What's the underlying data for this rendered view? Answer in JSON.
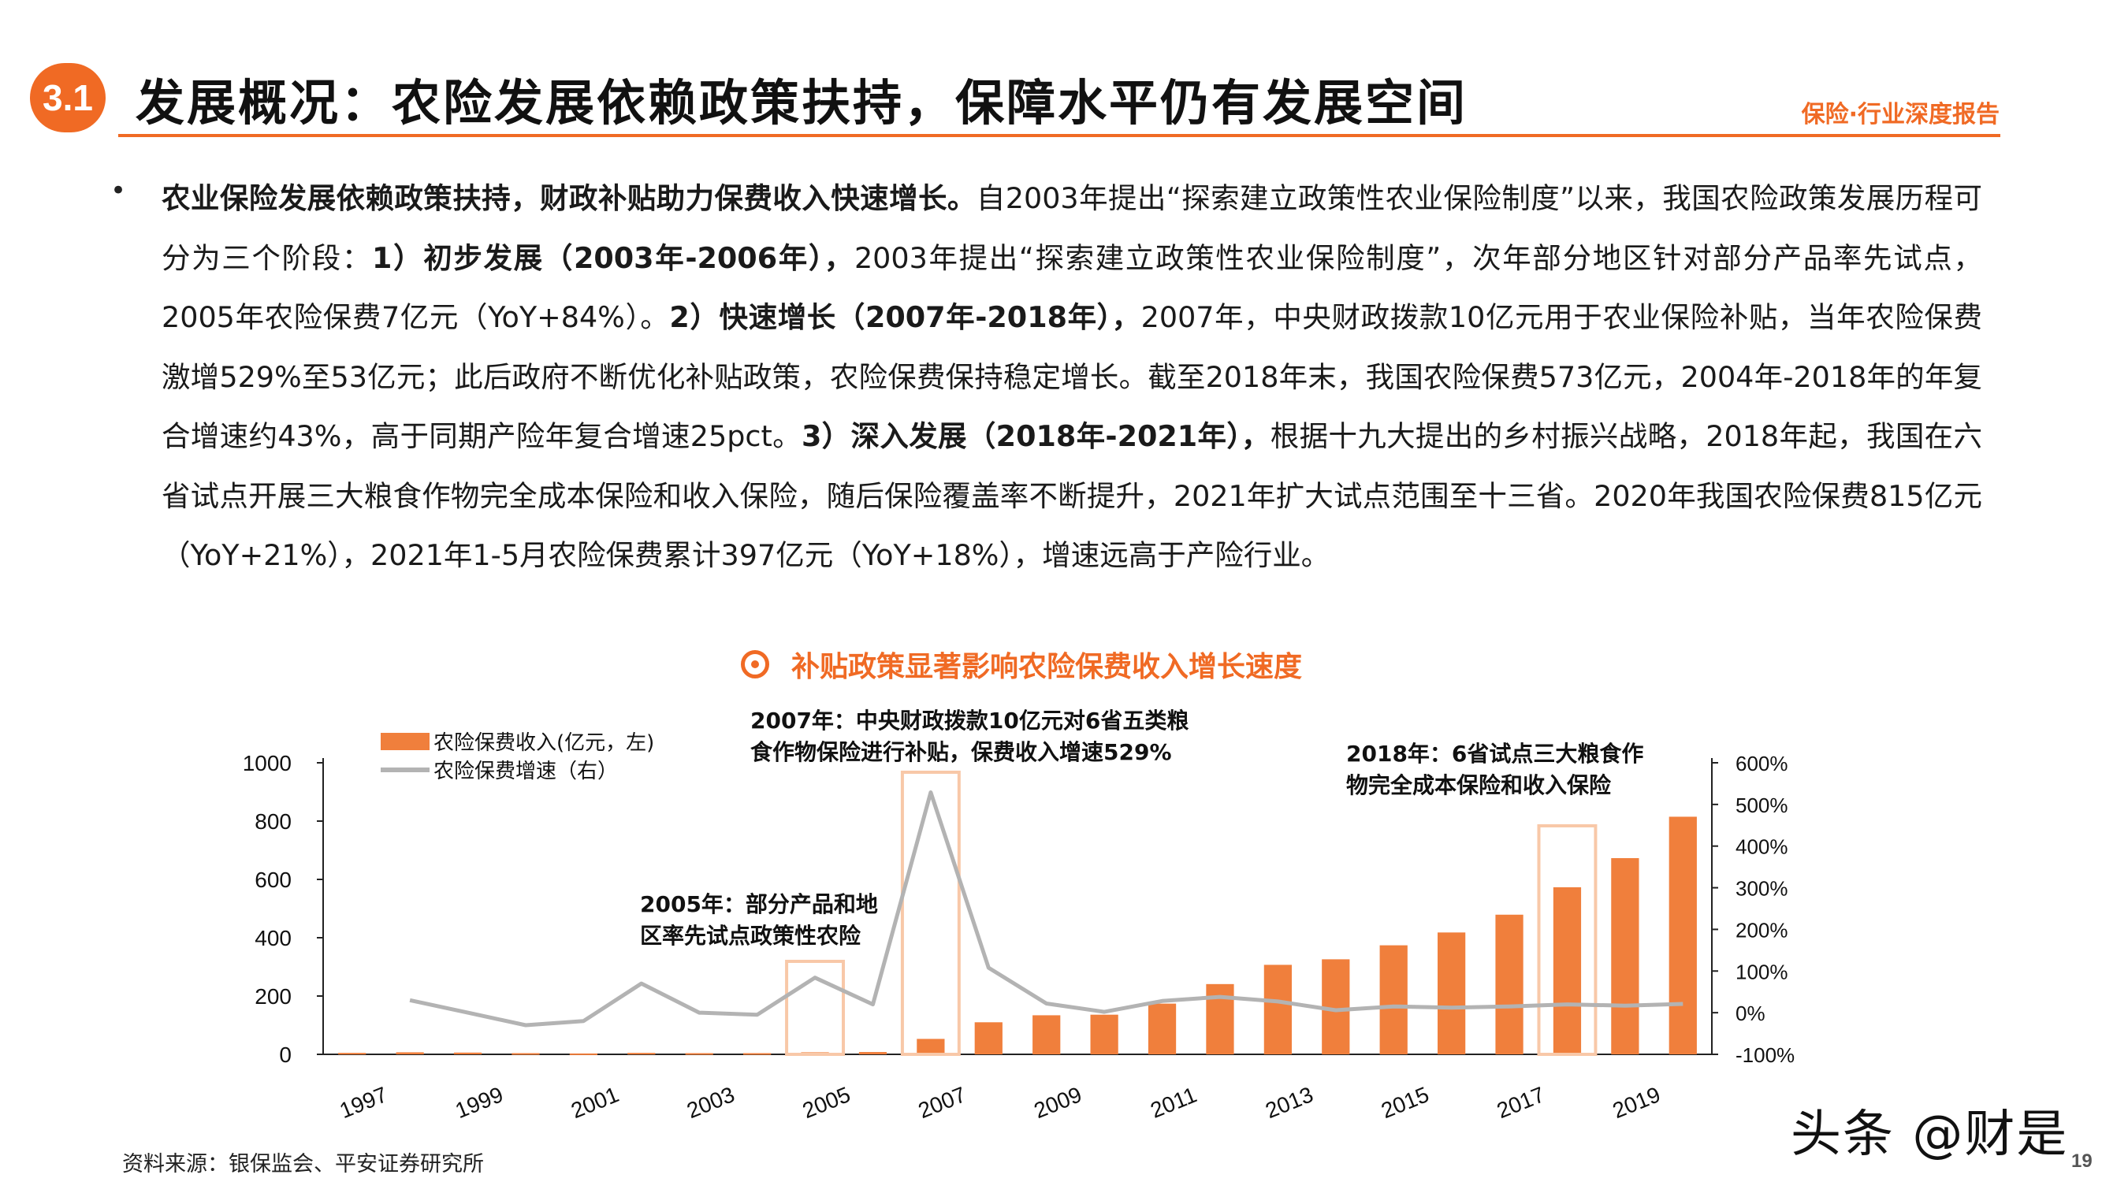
{
  "header": {
    "section_number": "3.1",
    "title": "发展概况：农险发展依赖政策扶持，保障水平仍有发展空间",
    "tag": "保险·行业深度报告"
  },
  "body": {
    "bullet": "•",
    "segments": [
      {
        "bold": true,
        "text": "农业保险发展依赖政策扶持，财政补贴助力保费收入快速增长。"
      },
      {
        "bold": false,
        "text": "自2003年提出“探索建立政策性农业保险制度”以来，我国农险政策发展历程可分为三个阶段："
      },
      {
        "bold": true,
        "text": "1）初步发展（2003年-2006年），"
      },
      {
        "bold": false,
        "text": "2003年提出“探索建立政策性农业保险制度”，次年部分地区针对部分产品率先试点，2005年农险保费7亿元（YoY+84%）。"
      },
      {
        "bold": true,
        "text": "2）快速增长（2007年-2018年），"
      },
      {
        "bold": false,
        "text": "2007年，中央财政拨款10亿元用于农业保险补贴，当年农险保费激增529%至53亿元；此后政府不断优化补贴政策，农险保费保持稳定增长。截至2018年末，我国农险保费573亿元，2004年-2018年的年复合增速约43%，高于同期产险年复合增速25pct。"
      },
      {
        "bold": true,
        "text": "3）深入发展（2018年-2021年），"
      },
      {
        "bold": false,
        "text": "根据十九大提出的乡村振兴战略，2018年起，我国在六省试点开展三大粮食作物完全成本保险和收入保险，随后保险覆盖率不断提升，2021年扩大试点范围至十三省。2020年我国农险保费815亿元（YoY+21%），2021年1-5月农险保费累计397亿元（YoY+18%），增速远高于产险行业。"
      }
    ]
  },
  "chart_title": "补贴政策显著影响农险保费收入增长速度",
  "annotations": {
    "note_2007": [
      "2007年：中央财政拨款10亿元对6省五类粮",
      "食作物保险进行补贴，保费收入增速529%"
    ],
    "note_2018": [
      "2018年：6省试点三大粮食作",
      "物完全成本保险和收入保险"
    ],
    "note_2005": [
      "2005年：部分产品和地",
      "区率先试点政策性农险"
    ]
  },
  "chart_data": {
    "type": "bar",
    "x": [
      1997,
      1998,
      1999,
      2000,
      2001,
      2002,
      2003,
      2004,
      2005,
      2006,
      2007,
      2008,
      2009,
      2010,
      2011,
      2012,
      2013,
      2014,
      2015,
      2016,
      2017,
      2018,
      2019,
      2020
    ],
    "x_tick_labels": [
      "1997",
      "1999",
      "2001",
      "2003",
      "2005",
      "2007",
      "2009",
      "2011",
      "2013",
      "2015",
      "2017",
      "2019"
    ],
    "series": [
      {
        "name": "农险保费收入(亿元，左)",
        "type": "bar",
        "axis": "left",
        "color": "#f07f3c",
        "values": [
          5,
          7,
          6,
          4,
          3,
          5,
          4,
          4,
          7,
          8,
          53,
          110,
          134,
          136,
          174,
          241,
          307,
          326,
          374,
          418,
          479,
          573,
          673,
          815
        ]
      },
      {
        "name": "农险保费增速（右）",
        "type": "line",
        "axis": "right",
        "color": "#b3b3b3",
        "values": [
          null,
          30,
          0,
          -30,
          -20,
          70,
          0,
          -5,
          84,
          20,
          529,
          108,
          22,
          2,
          28,
          38,
          27,
          6,
          15,
          12,
          15,
          20,
          17,
          21
        ]
      }
    ],
    "y_left": {
      "min": 0,
      "max": 1000,
      "ticks": [
        0,
        200,
        400,
        600,
        800,
        1000
      ]
    },
    "y_right": {
      "min": -100,
      "max": 600,
      "ticks": [
        "-100%",
        "0%",
        "100%",
        "200%",
        "300%",
        "400%",
        "500%",
        "600%"
      ]
    },
    "highlight_years": [
      2005,
      2007,
      2018
    ],
    "highlight_color": "#f8c8a8",
    "legend_position": "top-left",
    "grid": false
  },
  "footer": {
    "source": "资料来源：银保监会、平安证券研究所",
    "watermark": "头条 @财是",
    "page_number": "19"
  }
}
